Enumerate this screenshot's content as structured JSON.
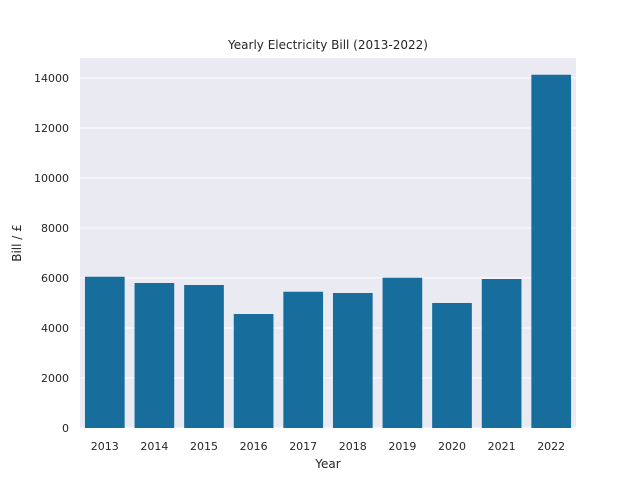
{
  "chart_data": {
    "type": "bar",
    "title": "Yearly Electricity Bill (2013-2022)",
    "xlabel": "Year",
    "ylabel": "Bill / £",
    "categories": [
      "2013",
      "2014",
      "2015",
      "2016",
      "2017",
      "2018",
      "2019",
      "2020",
      "2021",
      "2022"
    ],
    "values": [
      6050,
      5800,
      5720,
      4560,
      5450,
      5400,
      6010,
      5000,
      5960,
      14130
    ],
    "ylim": [
      0,
      14800
    ],
    "yticks": [
      0,
      2000,
      4000,
      6000,
      8000,
      10000,
      12000,
      14000
    ],
    "grid": true,
    "colors": {
      "bar": "#176d9c",
      "plot_background": "#eaeaf2",
      "grid": "#ffffff",
      "text": "#262626"
    }
  }
}
